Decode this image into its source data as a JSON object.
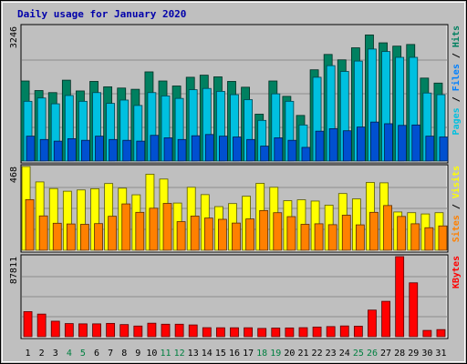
{
  "chart_data": {
    "type": "bar",
    "title": "Daily usage for January 2020",
    "categories": [
      "1",
      "2",
      "3",
      "4",
      "5",
      "6",
      "7",
      "8",
      "9",
      "10",
      "11",
      "12",
      "13",
      "14",
      "15",
      "16",
      "17",
      "18",
      "19",
      "20",
      "21",
      "22",
      "23",
      "24",
      "25",
      "26",
      "27",
      "28",
      "29",
      "30",
      "31"
    ],
    "weekend_categories": [
      "4",
      "5",
      "11",
      "12",
      "18",
      "19",
      "25",
      "26"
    ],
    "x_tick_color": "#000000",
    "weekend_tick_color": "#008040",
    "panels": [
      {
        "name": "hits-files-pages",
        "ymax_label": "3246",
        "ymax": 3246,
        "legend": [
          {
            "text": "Pages",
            "color": "#00c0e0"
          },
          {
            "text": " / ",
            "color": "#000000"
          },
          {
            "text": "Files",
            "color": "#0080ff"
          },
          {
            "text": " / ",
            "color": "#000000"
          },
          {
            "text": "Hits",
            "color": "#008060"
          }
        ],
        "series": [
          {
            "name": "Hits",
            "color": "#008060",
            "values": [
              1930,
              1700,
              1650,
              1950,
              1690,
              1920,
              1790,
              1760,
              1730,
              2150,
              1930,
              1810,
              2020,
              2070,
              2030,
              1920,
              1780,
              1130,
              1930,
              1560,
              1100,
              2200,
              2570,
              2440,
              2730,
              3040,
              2850,
              2770,
              2810,
              2000,
              1880
            ]
          },
          {
            "name": "Files",
            "color": "#00c0e0",
            "values": [
              1440,
              1520,
              1380,
              1580,
              1440,
              1650,
              1390,
              1470,
              1340,
              1650,
              1570,
              1510,
              1720,
              1750,
              1680,
              1600,
              1480,
              980,
              1620,
              1440,
              870,
              2020,
              2300,
              2160,
              2410,
              2700,
              2640,
              2500,
              2500,
              1640,
              1600
            ]
          },
          {
            "name": "Pages",
            "color": "#0050d0",
            "values": [
              600,
              520,
              480,
              540,
              500,
              600,
              520,
              500,
              480,
              620,
              560,
              520,
              610,
              640,
              600,
              580,
              520,
              360,
              560,
              500,
              330,
              720,
              780,
              730,
              820,
              940,
              900,
              860,
              870,
              600,
              580
            ]
          }
        ]
      },
      {
        "name": "visits-sites",
        "ymax_label": "468",
        "ymax": 468,
        "legend": [
          {
            "text": "Sites",
            "color": "#ff8000"
          },
          {
            "text": " / ",
            "color": "#000000"
          },
          {
            "text": "Visits",
            "color": "#ffff00"
          }
        ],
        "series": [
          {
            "name": "Visits",
            "color": "#ffff00",
            "values": [
              468,
              382,
              345,
              330,
              337,
              344,
              373,
              347,
              310,
              425,
              398,
              264,
              352,
              311,
              244,
              261,
              302,
              374,
              352,
              277,
              282,
              275,
              252,
              317,
              287,
              379,
              377,
              214,
              210,
              203,
              210
            ]
          },
          {
            "name": "Sites",
            "color": "#ff8000",
            "values": [
              283,
              192,
              151,
              147,
              145,
              149,
              190,
              259,
              212,
              235,
              262,
              160,
              191,
              180,
              173,
              152,
              175,
              222,
              210,
              188,
              145,
              148,
              143,
              196,
              142,
              212,
              250,
              189,
              148,
              126,
              136
            ]
          }
        ]
      },
      {
        "name": "kbytes",
        "ymax_label": "87811",
        "ymax": 87811,
        "legend": [
          {
            "text": "KBytes",
            "color": "#ff0000"
          }
        ],
        "series": [
          {
            "name": "KBytes",
            "color": "#ff0000",
            "values": [
              27500,
              24800,
              17000,
              14400,
              14100,
              14100,
              14600,
              13300,
              11700,
              14800,
              13700,
              13700,
              12900,
              9900,
              9800,
              9800,
              9800,
              9100,
              9500,
              9600,
              9900,
              10600,
              11100,
              11800,
              11500,
              29200,
              38800,
              87811,
              59100,
              6900,
              7800
            ]
          }
        ]
      }
    ]
  }
}
